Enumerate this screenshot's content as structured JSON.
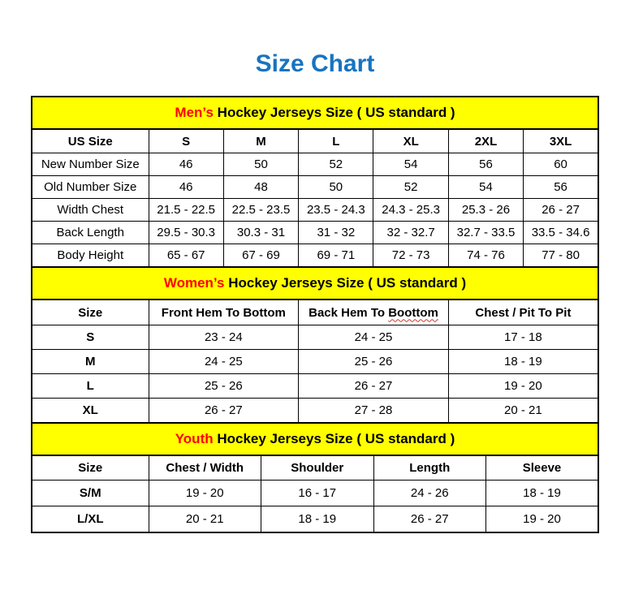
{
  "page": {
    "title": "Size Chart"
  },
  "colors": {
    "title_blue": "#1674c1",
    "band_yellow": "#ffff00",
    "highlight_red": "#ff0000",
    "squiggle_red": "#d0342c",
    "border_black": "#000000"
  },
  "tables": {
    "mens": {
      "band": {
        "highlight": "Men’s",
        "rest": " Hockey Jerseys Size ( US standard )"
      },
      "columns": [
        "US Size",
        "S",
        "M",
        "L",
        "XL",
        "2XL",
        "3XL"
      ],
      "rows": [
        {
          "label": "New Number Size",
          "values": [
            "46",
            "50",
            "52",
            "54",
            "56",
            "60"
          ]
        },
        {
          "label": "Old Number Size",
          "values": [
            "46",
            "48",
            "50",
            "52",
            "54",
            "56"
          ]
        },
        {
          "label": "Width Chest",
          "values": [
            "21.5 - 22.5",
            "22.5 - 23.5",
            "23.5 - 24.3",
            "24.3 - 25.3",
            "25.3 - 26",
            "26 - 27"
          ]
        },
        {
          "label": "Back Length",
          "values": [
            "29.5 - 30.3",
            "30.3 - 31",
            "31 - 32",
            "32 - 32.7",
            "32.7 - 33.5",
            "33.5 - 34.6"
          ]
        },
        {
          "label": "Body Height",
          "values": [
            "65 - 67",
            "67 - 69",
            "69 - 71",
            "72 - 73",
            "74 - 76",
            "77 - 80"
          ]
        }
      ]
    },
    "womens": {
      "band": {
        "highlight": "Women’s",
        "rest": " Hockey Jerseys Size ( US standard )"
      },
      "columns": [
        "Size",
        "Front Hem To Bottom",
        {
          "prefix": "Back Hem To ",
          "misspelled": "Boottom"
        },
        "Chest / Pit To Pit"
      ],
      "rows": [
        {
          "label": "S",
          "values": [
            "23 - 24",
            "24 - 25",
            "17 - 18"
          ]
        },
        {
          "label": "M",
          "values": [
            "24 - 25",
            "25 - 26",
            "18 - 19"
          ]
        },
        {
          "label": "L",
          "values": [
            "25 - 26",
            "26 - 27",
            "19 - 20"
          ]
        },
        {
          "label": "XL",
          "values": [
            "26 - 27",
            "27 - 28",
            "20 - 21"
          ]
        }
      ]
    },
    "youth": {
      "band": {
        "highlight": "Youth",
        "rest": " Hockey Jerseys Size ( US standard )"
      },
      "columns": [
        "Size",
        "Chest / Width",
        "Shoulder",
        "Length",
        "Sleeve"
      ],
      "rows": [
        {
          "label": "S/M",
          "values": [
            "19 - 20",
            "16 - 17",
            "24 - 26",
            "18 - 19"
          ]
        },
        {
          "label": "L/XL",
          "values": [
            "20 - 21",
            "18 - 19",
            "26 - 27",
            "19 - 20"
          ]
        }
      ]
    }
  }
}
